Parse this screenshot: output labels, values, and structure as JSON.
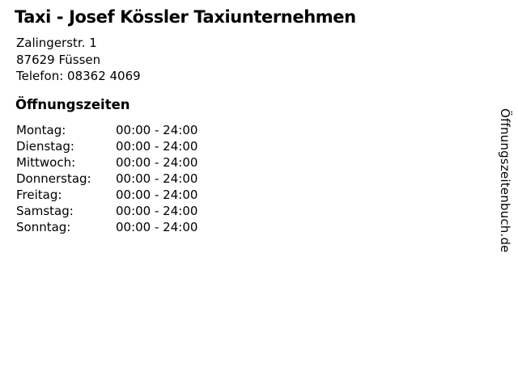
{
  "business": {
    "title": "Taxi - Josef Kössler Taxiunternehmen",
    "address_line1": "Zalingerstr. 1",
    "address_line2": "87629 Füssen",
    "phone": "Telefon: 08362 4069"
  },
  "opening_hours": {
    "heading": "Öffnungszeiten",
    "rows": [
      {
        "day": "Montag:",
        "time": "00:00 - 24:00"
      },
      {
        "day": "Dienstag:",
        "time": "00:00 - 24:00"
      },
      {
        "day": "Mittwoch:",
        "time": "00:00 - 24:00"
      },
      {
        "day": "Donnerstag:",
        "time": "00:00 - 24:00"
      },
      {
        "day": "Freitag:",
        "time": "00:00 - 24:00"
      },
      {
        "day": "Samstag:",
        "time": "00:00 - 24:00"
      },
      {
        "day": "Sonntag:",
        "time": "00:00 - 24:00"
      }
    ]
  },
  "watermark": {
    "label": "Öffnungszeitenbuch.de"
  },
  "colors": {
    "background": "#ffffff",
    "text": "#000000"
  }
}
